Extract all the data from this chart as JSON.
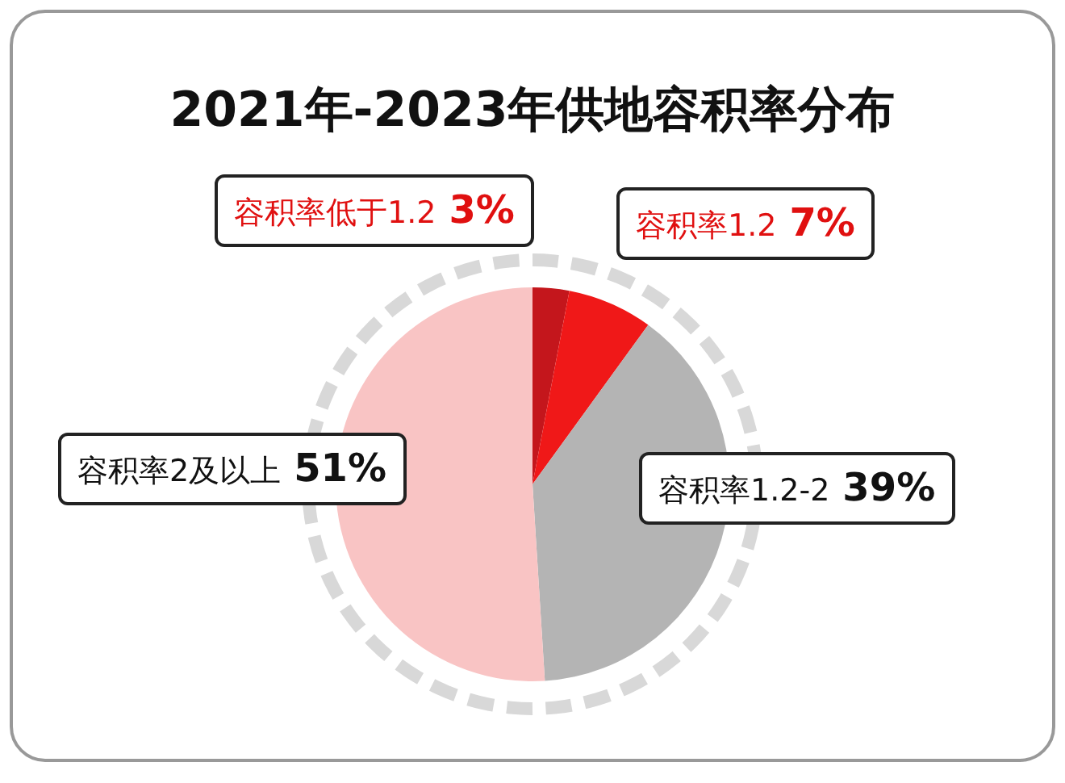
{
  "chart_data": {
    "type": "pie",
    "title": "2021年-2023年供地容积率分布",
    "categories": [
      "容积率低于1.2",
      "容积率1.2",
      "容积率1.2-2",
      "容积率2及以上"
    ],
    "values": [
      3,
      7,
      39,
      51
    ],
    "colors": [
      "#c4161c",
      "#f01818",
      "#b4b4b4",
      "#f9c4c4"
    ],
    "value_labels": [
      "3%",
      "7%",
      "39%",
      "51%"
    ],
    "legend": false
  }
}
